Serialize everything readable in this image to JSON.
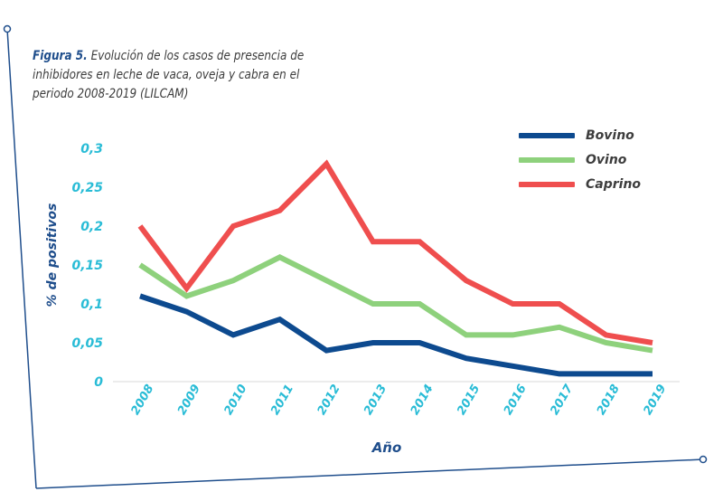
{
  "figure": {
    "label": "Figura 5.",
    "caption": "Evolución de los casos de presencia de inhibidores en leche de vaca, oveja y cabra en el periodo 2008-2019 (LILCAM)"
  },
  "chart_data": {
    "type": "line",
    "title": "",
    "xlabel": "Año",
    "ylabel": "% de positivos",
    "categories": [
      "2008",
      "2009",
      "2010",
      "2011",
      "2012",
      "2013",
      "2014",
      "2015",
      "2016",
      "2017",
      "2018",
      "2019"
    ],
    "y_tick_labels": [
      "0",
      "0,05",
      "0,1",
      "0,15",
      "0,2",
      "0,25",
      "0,3"
    ],
    "y_ticks": [
      0,
      0.05,
      0.1,
      0.15,
      0.2,
      0.25,
      0.3
    ],
    "ylim": [
      0,
      0.3
    ],
    "grid": false,
    "legend_position": "top-right",
    "series": [
      {
        "name": "Bovino",
        "color": "#0d4a8f",
        "values": [
          0.11,
          0.09,
          0.06,
          0.08,
          0.04,
          0.05,
          0.05,
          0.03,
          0.02,
          0.01,
          0.01,
          0.01
        ]
      },
      {
        "name": "Ovino",
        "color": "#8ed17c",
        "values": [
          0.15,
          0.11,
          0.13,
          0.16,
          0.13,
          0.1,
          0.1,
          0.06,
          0.06,
          0.07,
          0.05,
          0.04
        ]
      },
      {
        "name": "Caprino",
        "color": "#ef4e4e",
        "values": [
          0.2,
          0.12,
          0.2,
          0.22,
          0.28,
          0.18,
          0.18,
          0.13,
          0.1,
          0.1,
          0.06,
          0.05
        ]
      }
    ]
  },
  "colors": {
    "frame": "#1f4e8c",
    "tick_text": "#29bcd6",
    "axis_text": "#1f4e8c"
  }
}
